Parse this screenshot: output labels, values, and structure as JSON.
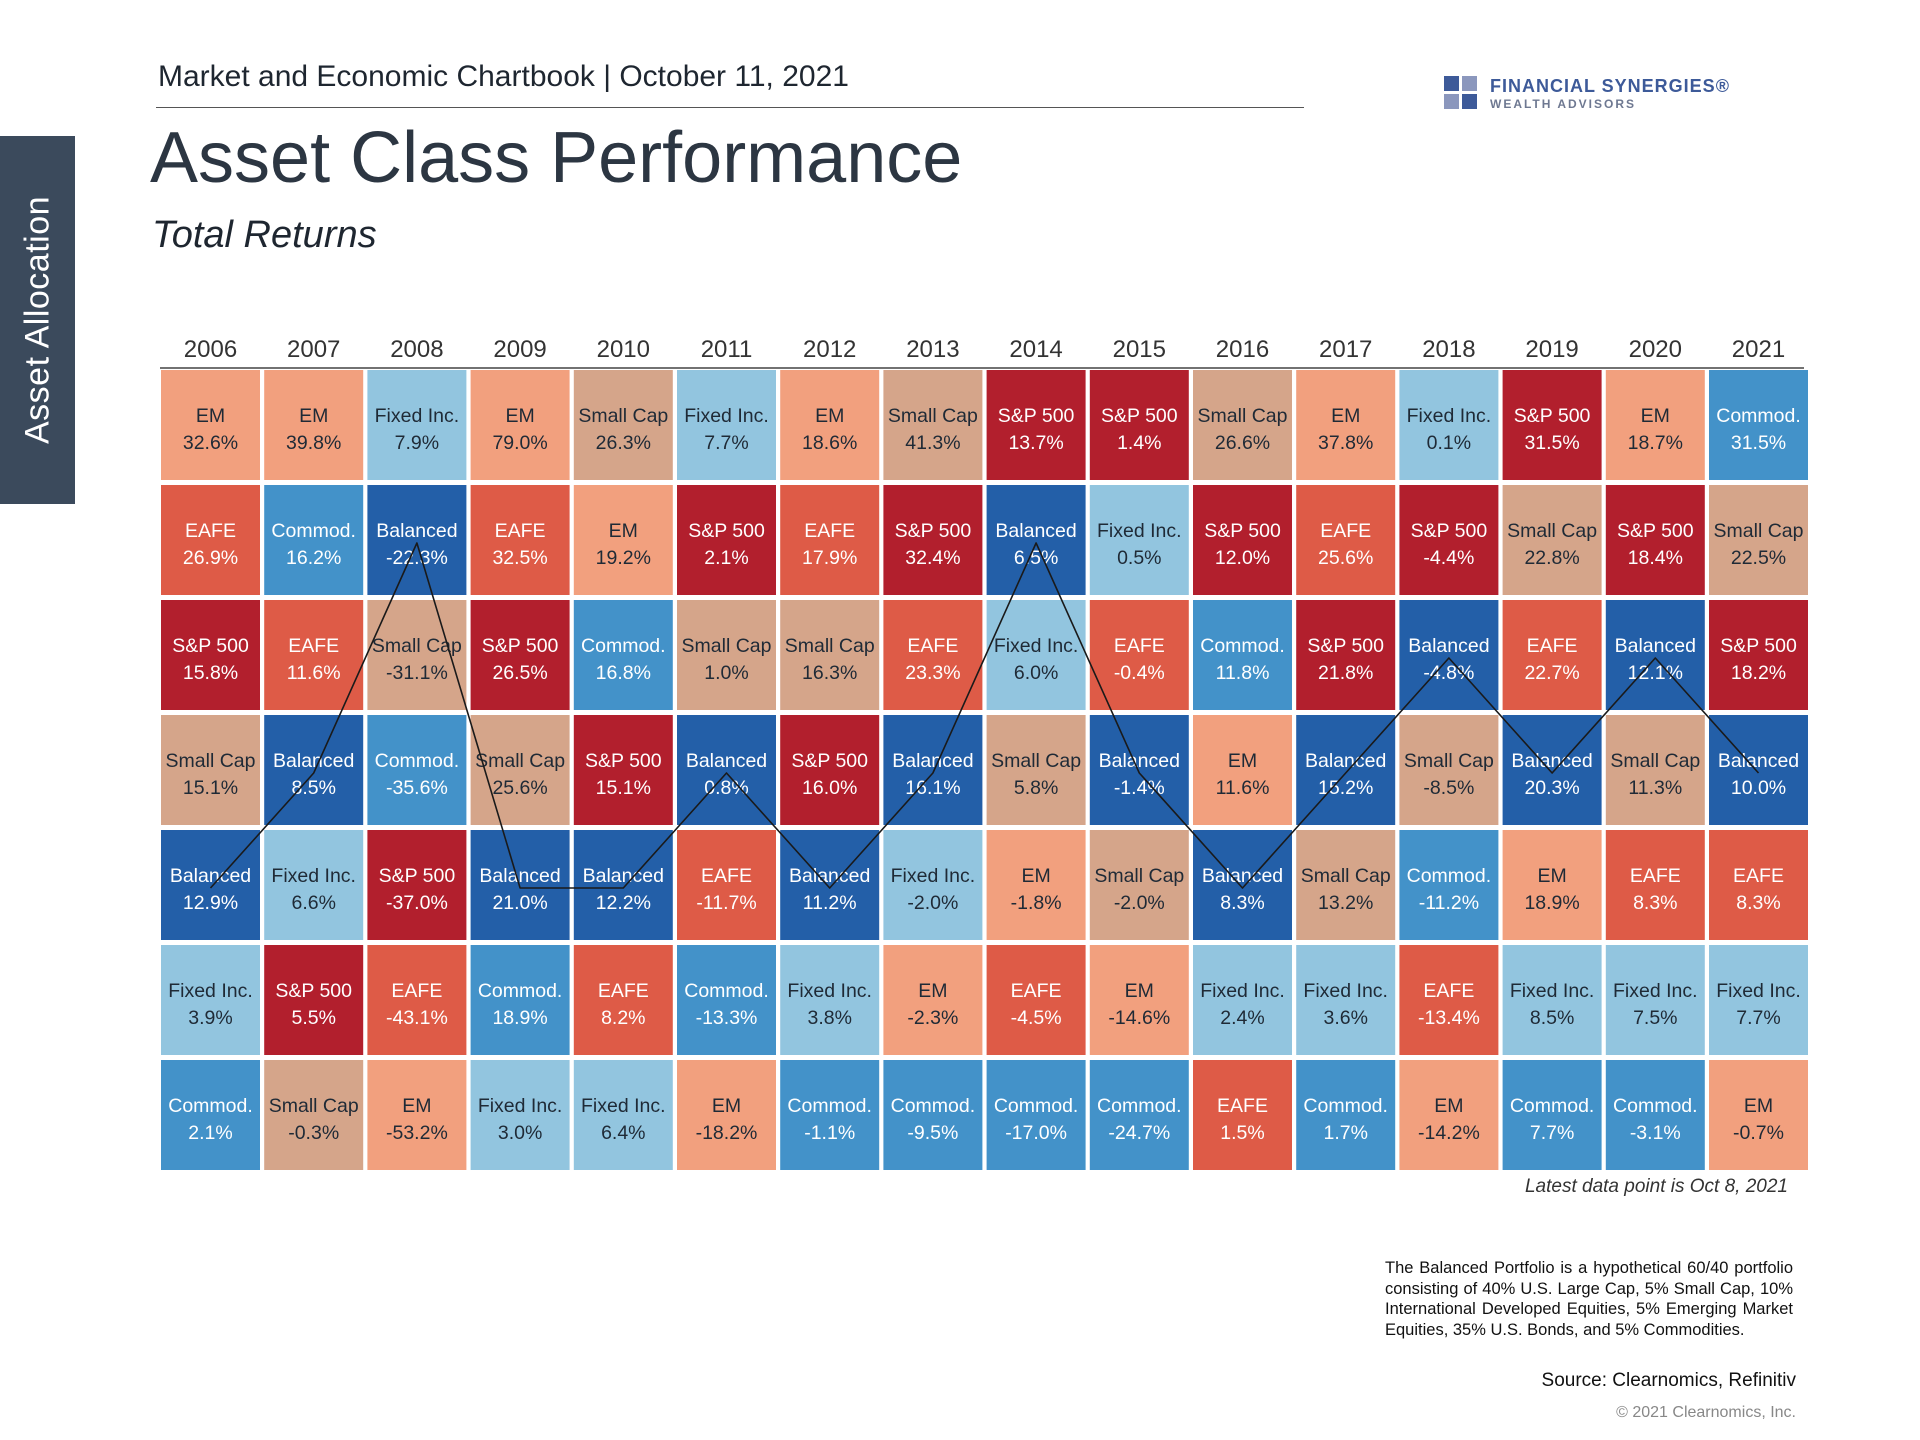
{
  "side_tab": "Asset Allocation",
  "header": "Market and Economic Chartbook | October 11, 2021",
  "logo": {
    "name": "FINANCIAL SYNERGIES®",
    "sub": "WEALTH ADVISORS"
  },
  "title": "Asset Class Performance",
  "subtitle": "Total Returns",
  "colors": {
    "em": "#f2a07e",
    "eafe": "#de5b47",
    "sp500": "#b21f2d",
    "small_cap": "#d5a58a",
    "balanced": "#235fa8",
    "fixed_inc": "#92c5df",
    "commod": "#4392c9"
  },
  "chart_data": {
    "type": "table",
    "columns": [
      "2006",
      "2007",
      "2008",
      "2009",
      "2010",
      "2011",
      "2012",
      "2013",
      "2014",
      "2015",
      "2016",
      "2017",
      "2018",
      "2019",
      "2020",
      "2021"
    ],
    "rows_ranked": [
      [
        {
          "asset": "EM",
          "label": "EM",
          "value": "32.6%"
        },
        {
          "asset": "EAFE",
          "label": "EAFE",
          "value": "26.9%"
        },
        {
          "asset": "S&P 500",
          "label": "S&P 500",
          "value": "15.8%"
        },
        {
          "asset": "Small Cap",
          "label": "Small Cap",
          "value": "15.1%"
        },
        {
          "asset": "Balanced",
          "label": "Balanced",
          "value": "12.9%"
        },
        {
          "asset": "Fixed Inc.",
          "label": "Fixed Inc.",
          "value": "3.9%"
        },
        {
          "asset": "Commod.",
          "label": "Commod.",
          "value": "2.1%"
        }
      ],
      [
        {
          "asset": "EM",
          "label": "EM",
          "value": "39.8%"
        },
        {
          "asset": "Commod.",
          "label": "Commod.",
          "value": "16.2%"
        },
        {
          "asset": "EAFE",
          "label": "EAFE",
          "value": "11.6%"
        },
        {
          "asset": "Balanced",
          "label": "Balanced",
          "value": "8.5%"
        },
        {
          "asset": "Fixed Inc.",
          "label": "Fixed Inc.",
          "value": "6.6%"
        },
        {
          "asset": "S&P 500",
          "label": "S&P 500",
          "value": "5.5%"
        },
        {
          "asset": "Small Cap",
          "label": "Small Cap",
          "value": "-0.3%"
        }
      ],
      [
        {
          "asset": "Fixed Inc.",
          "label": "Fixed Inc.",
          "value": "7.9%"
        },
        {
          "asset": "Balanced",
          "label": "Balanced",
          "value": "-22.3%"
        },
        {
          "asset": "Small Cap",
          "label": "Small Cap",
          "value": "-31.1%"
        },
        {
          "asset": "Commod.",
          "label": "Commod.",
          "value": "-35.6%"
        },
        {
          "asset": "S&P 500",
          "label": "S&P 500",
          "value": "-37.0%"
        },
        {
          "asset": "EAFE",
          "label": "EAFE",
          "value": "-43.1%"
        },
        {
          "asset": "EM",
          "label": "EM",
          "value": "-53.2%"
        }
      ],
      [
        {
          "asset": "EM",
          "label": "EM",
          "value": "79.0%"
        },
        {
          "asset": "EAFE",
          "label": "EAFE",
          "value": "32.5%"
        },
        {
          "asset": "S&P 500",
          "label": "S&P 500",
          "value": "26.5%"
        },
        {
          "asset": "Small Cap",
          "label": "Small Cap",
          "value": "25.6%"
        },
        {
          "asset": "Balanced",
          "label": "Balanced",
          "value": "21.0%"
        },
        {
          "asset": "Commod.",
          "label": "Commod.",
          "value": "18.9%"
        },
        {
          "asset": "Fixed Inc.",
          "label": "Fixed Inc.",
          "value": "3.0%"
        }
      ],
      [
        {
          "asset": "Small Cap",
          "label": "Small Cap",
          "value": "26.3%"
        },
        {
          "asset": "EM",
          "label": "EM",
          "value": "19.2%"
        },
        {
          "asset": "Commod.",
          "label": "Commod.",
          "value": "16.8%"
        },
        {
          "asset": "S&P 500",
          "label": "S&P 500",
          "value": "15.1%"
        },
        {
          "asset": "Balanced",
          "label": "Balanced",
          "value": "12.2%"
        },
        {
          "asset": "EAFE",
          "label": "EAFE",
          "value": "8.2%"
        },
        {
          "asset": "Fixed Inc.",
          "label": "Fixed Inc.",
          "value": "6.4%"
        }
      ],
      [
        {
          "asset": "Fixed Inc.",
          "label": "Fixed Inc.",
          "value": "7.7%"
        },
        {
          "asset": "S&P 500",
          "label": "S&P 500",
          "value": "2.1%"
        },
        {
          "asset": "Small Cap",
          "label": "Small Cap",
          "value": "1.0%"
        },
        {
          "asset": "Balanced",
          "label": "Balanced",
          "value": "0.8%"
        },
        {
          "asset": "EAFE",
          "label": "EAFE",
          "value": "-11.7%"
        },
        {
          "asset": "Commod.",
          "label": "Commod.",
          "value": "-13.3%"
        },
        {
          "asset": "EM",
          "label": "EM",
          "value": "-18.2%"
        }
      ],
      [
        {
          "asset": "EM",
          "label": "EM",
          "value": "18.6%"
        },
        {
          "asset": "EAFE",
          "label": "EAFE",
          "value": "17.9%"
        },
        {
          "asset": "Small Cap",
          "label": "Small Cap",
          "value": "16.3%"
        },
        {
          "asset": "S&P 500",
          "label": "S&P 500",
          "value": "16.0%"
        },
        {
          "asset": "Balanced",
          "label": "Balanced",
          "value": "11.2%"
        },
        {
          "asset": "Fixed Inc.",
          "label": "Fixed Inc.",
          "value": "3.8%"
        },
        {
          "asset": "Commod.",
          "label": "Commod.",
          "value": "-1.1%"
        }
      ],
      [
        {
          "asset": "Small Cap",
          "label": "Small Cap",
          "value": "41.3%"
        },
        {
          "asset": "S&P 500",
          "label": "S&P 500",
          "value": "32.4%"
        },
        {
          "asset": "EAFE",
          "label": "EAFE",
          "value": "23.3%"
        },
        {
          "asset": "Balanced",
          "label": "Balanced",
          "value": "16.1%"
        },
        {
          "asset": "Fixed Inc.",
          "label": "Fixed Inc.",
          "value": "-2.0%"
        },
        {
          "asset": "EM",
          "label": "EM",
          "value": "-2.3%"
        },
        {
          "asset": "Commod.",
          "label": "Commod.",
          "value": "-9.5%"
        }
      ],
      [
        {
          "asset": "S&P 500",
          "label": "S&P 500",
          "value": "13.7%"
        },
        {
          "asset": "Balanced",
          "label": "Balanced",
          "value": "6.5%"
        },
        {
          "asset": "Fixed Inc.",
          "label": "Fixed Inc.",
          "value": "6.0%"
        },
        {
          "asset": "Small Cap",
          "label": "Small Cap",
          "value": "5.8%"
        },
        {
          "asset": "EM",
          "label": "EM",
          "value": "-1.8%"
        },
        {
          "asset": "EAFE",
          "label": "EAFE",
          "value": "-4.5%"
        },
        {
          "asset": "Commod.",
          "label": "Commod.",
          "value": "-17.0%"
        }
      ],
      [
        {
          "asset": "S&P 500",
          "label": "S&P 500",
          "value": "1.4%"
        },
        {
          "asset": "Fixed Inc.",
          "label": "Fixed Inc.",
          "value": "0.5%"
        },
        {
          "asset": "EAFE",
          "label": "EAFE",
          "value": "-0.4%"
        },
        {
          "asset": "Balanced",
          "label": "Balanced",
          "value": "-1.4%"
        },
        {
          "asset": "Small Cap",
          "label": "Small Cap",
          "value": "-2.0%"
        },
        {
          "asset": "EM",
          "label": "EM",
          "value": "-14.6%"
        },
        {
          "asset": "Commod.",
          "label": "Commod.",
          "value": "-24.7%"
        }
      ],
      [
        {
          "asset": "Small Cap",
          "label": "Small Cap",
          "value": "26.6%"
        },
        {
          "asset": "S&P 500",
          "label": "S&P 500",
          "value": "12.0%"
        },
        {
          "asset": "Commod.",
          "label": "Commod.",
          "value": "11.8%"
        },
        {
          "asset": "EM",
          "label": "EM",
          "value": "11.6%"
        },
        {
          "asset": "Balanced",
          "label": "Balanced",
          "value": "8.3%"
        },
        {
          "asset": "Fixed Inc.",
          "label": "Fixed Inc.",
          "value": "2.4%"
        },
        {
          "asset": "EAFE",
          "label": "EAFE",
          "value": "1.5%"
        }
      ],
      [
        {
          "asset": "EM",
          "label": "EM",
          "value": "37.8%"
        },
        {
          "asset": "EAFE",
          "label": "EAFE",
          "value": "25.6%"
        },
        {
          "asset": "S&P 500",
          "label": "S&P 500",
          "value": "21.8%"
        },
        {
          "asset": "Balanced",
          "label": "Balanced",
          "value": "15.2%"
        },
        {
          "asset": "Small Cap",
          "label": "Small Cap",
          "value": "13.2%"
        },
        {
          "asset": "Fixed Inc.",
          "label": "Fixed Inc.",
          "value": "3.6%"
        },
        {
          "asset": "Commod.",
          "label": "Commod.",
          "value": "1.7%"
        }
      ],
      [
        {
          "asset": "Fixed Inc.",
          "label": "Fixed Inc.",
          "value": "0.1%"
        },
        {
          "asset": "S&P 500",
          "label": "S&P 500",
          "value": "-4.4%"
        },
        {
          "asset": "Balanced",
          "label": "Balanced",
          "value": "-4.8%"
        },
        {
          "asset": "Small Cap",
          "label": "Small Cap",
          "value": "-8.5%"
        },
        {
          "asset": "Commod.",
          "label": "Commod.",
          "value": "-11.2%"
        },
        {
          "asset": "EAFE",
          "label": "EAFE",
          "value": "-13.4%"
        },
        {
          "asset": "EM",
          "label": "EM",
          "value": "-14.2%"
        }
      ],
      [
        {
          "asset": "S&P 500",
          "label": "S&P 500",
          "value": "31.5%"
        },
        {
          "asset": "Small Cap",
          "label": "Small Cap",
          "value": "22.8%"
        },
        {
          "asset": "EAFE",
          "label": "EAFE",
          "value": "22.7%"
        },
        {
          "asset": "Balanced",
          "label": "Balanced",
          "value": "20.3%"
        },
        {
          "asset": "EM",
          "label": "EM",
          "value": "18.9%"
        },
        {
          "asset": "Fixed Inc.",
          "label": "Fixed Inc.",
          "value": "8.5%"
        },
        {
          "asset": "Commod.",
          "label": "Commod.",
          "value": "7.7%"
        }
      ],
      [
        {
          "asset": "EM",
          "label": "EM",
          "value": "18.7%"
        },
        {
          "asset": "S&P 500",
          "label": "S&P 500",
          "value": "18.4%"
        },
        {
          "asset": "Balanced",
          "label": "Balanced",
          "value": "12.1%"
        },
        {
          "asset": "Small Cap",
          "label": "Small Cap",
          "value": "11.3%"
        },
        {
          "asset": "EAFE",
          "label": "EAFE",
          "value": "8.3%"
        },
        {
          "asset": "Fixed Inc.",
          "label": "Fixed Inc.",
          "value": "7.5%"
        },
        {
          "asset": "Commod.",
          "label": "Commod.",
          "value": "-3.1%"
        }
      ],
      [
        {
          "asset": "Commod.",
          "label": "Commod.",
          "value": "31.5%"
        },
        {
          "asset": "Small Cap",
          "label": "Small Cap",
          "value": "22.5%"
        },
        {
          "asset": "S&P 500",
          "label": "S&P 500",
          "value": "18.2%"
        },
        {
          "asset": "Balanced",
          "label": "Balanced",
          "value": "10.0%"
        },
        {
          "asset": "EAFE",
          "label": "EAFE",
          "value": "8.3%"
        },
        {
          "asset": "Fixed Inc.",
          "label": "Fixed Inc.",
          "value": "7.7%"
        },
        {
          "asset": "EM",
          "label": "EM",
          "value": "-0.7%"
        }
      ]
    ],
    "highlight_line": "Balanced"
  },
  "latest_note": "Latest data point is Oct 8, 2021",
  "footnote": "The Balanced Portfolio is a hypothetical 60/40 portfolio consisting of 40% U.S. Large Cap, 5% Small Cap, 10% International Developed Equities, 5% Emerging Market Equities, 35% U.S. Bonds, and 5% Commodities.",
  "source": "Source: Clearnomics, Refinitiv",
  "copyright": "© 2021 Clearnomics, Inc."
}
